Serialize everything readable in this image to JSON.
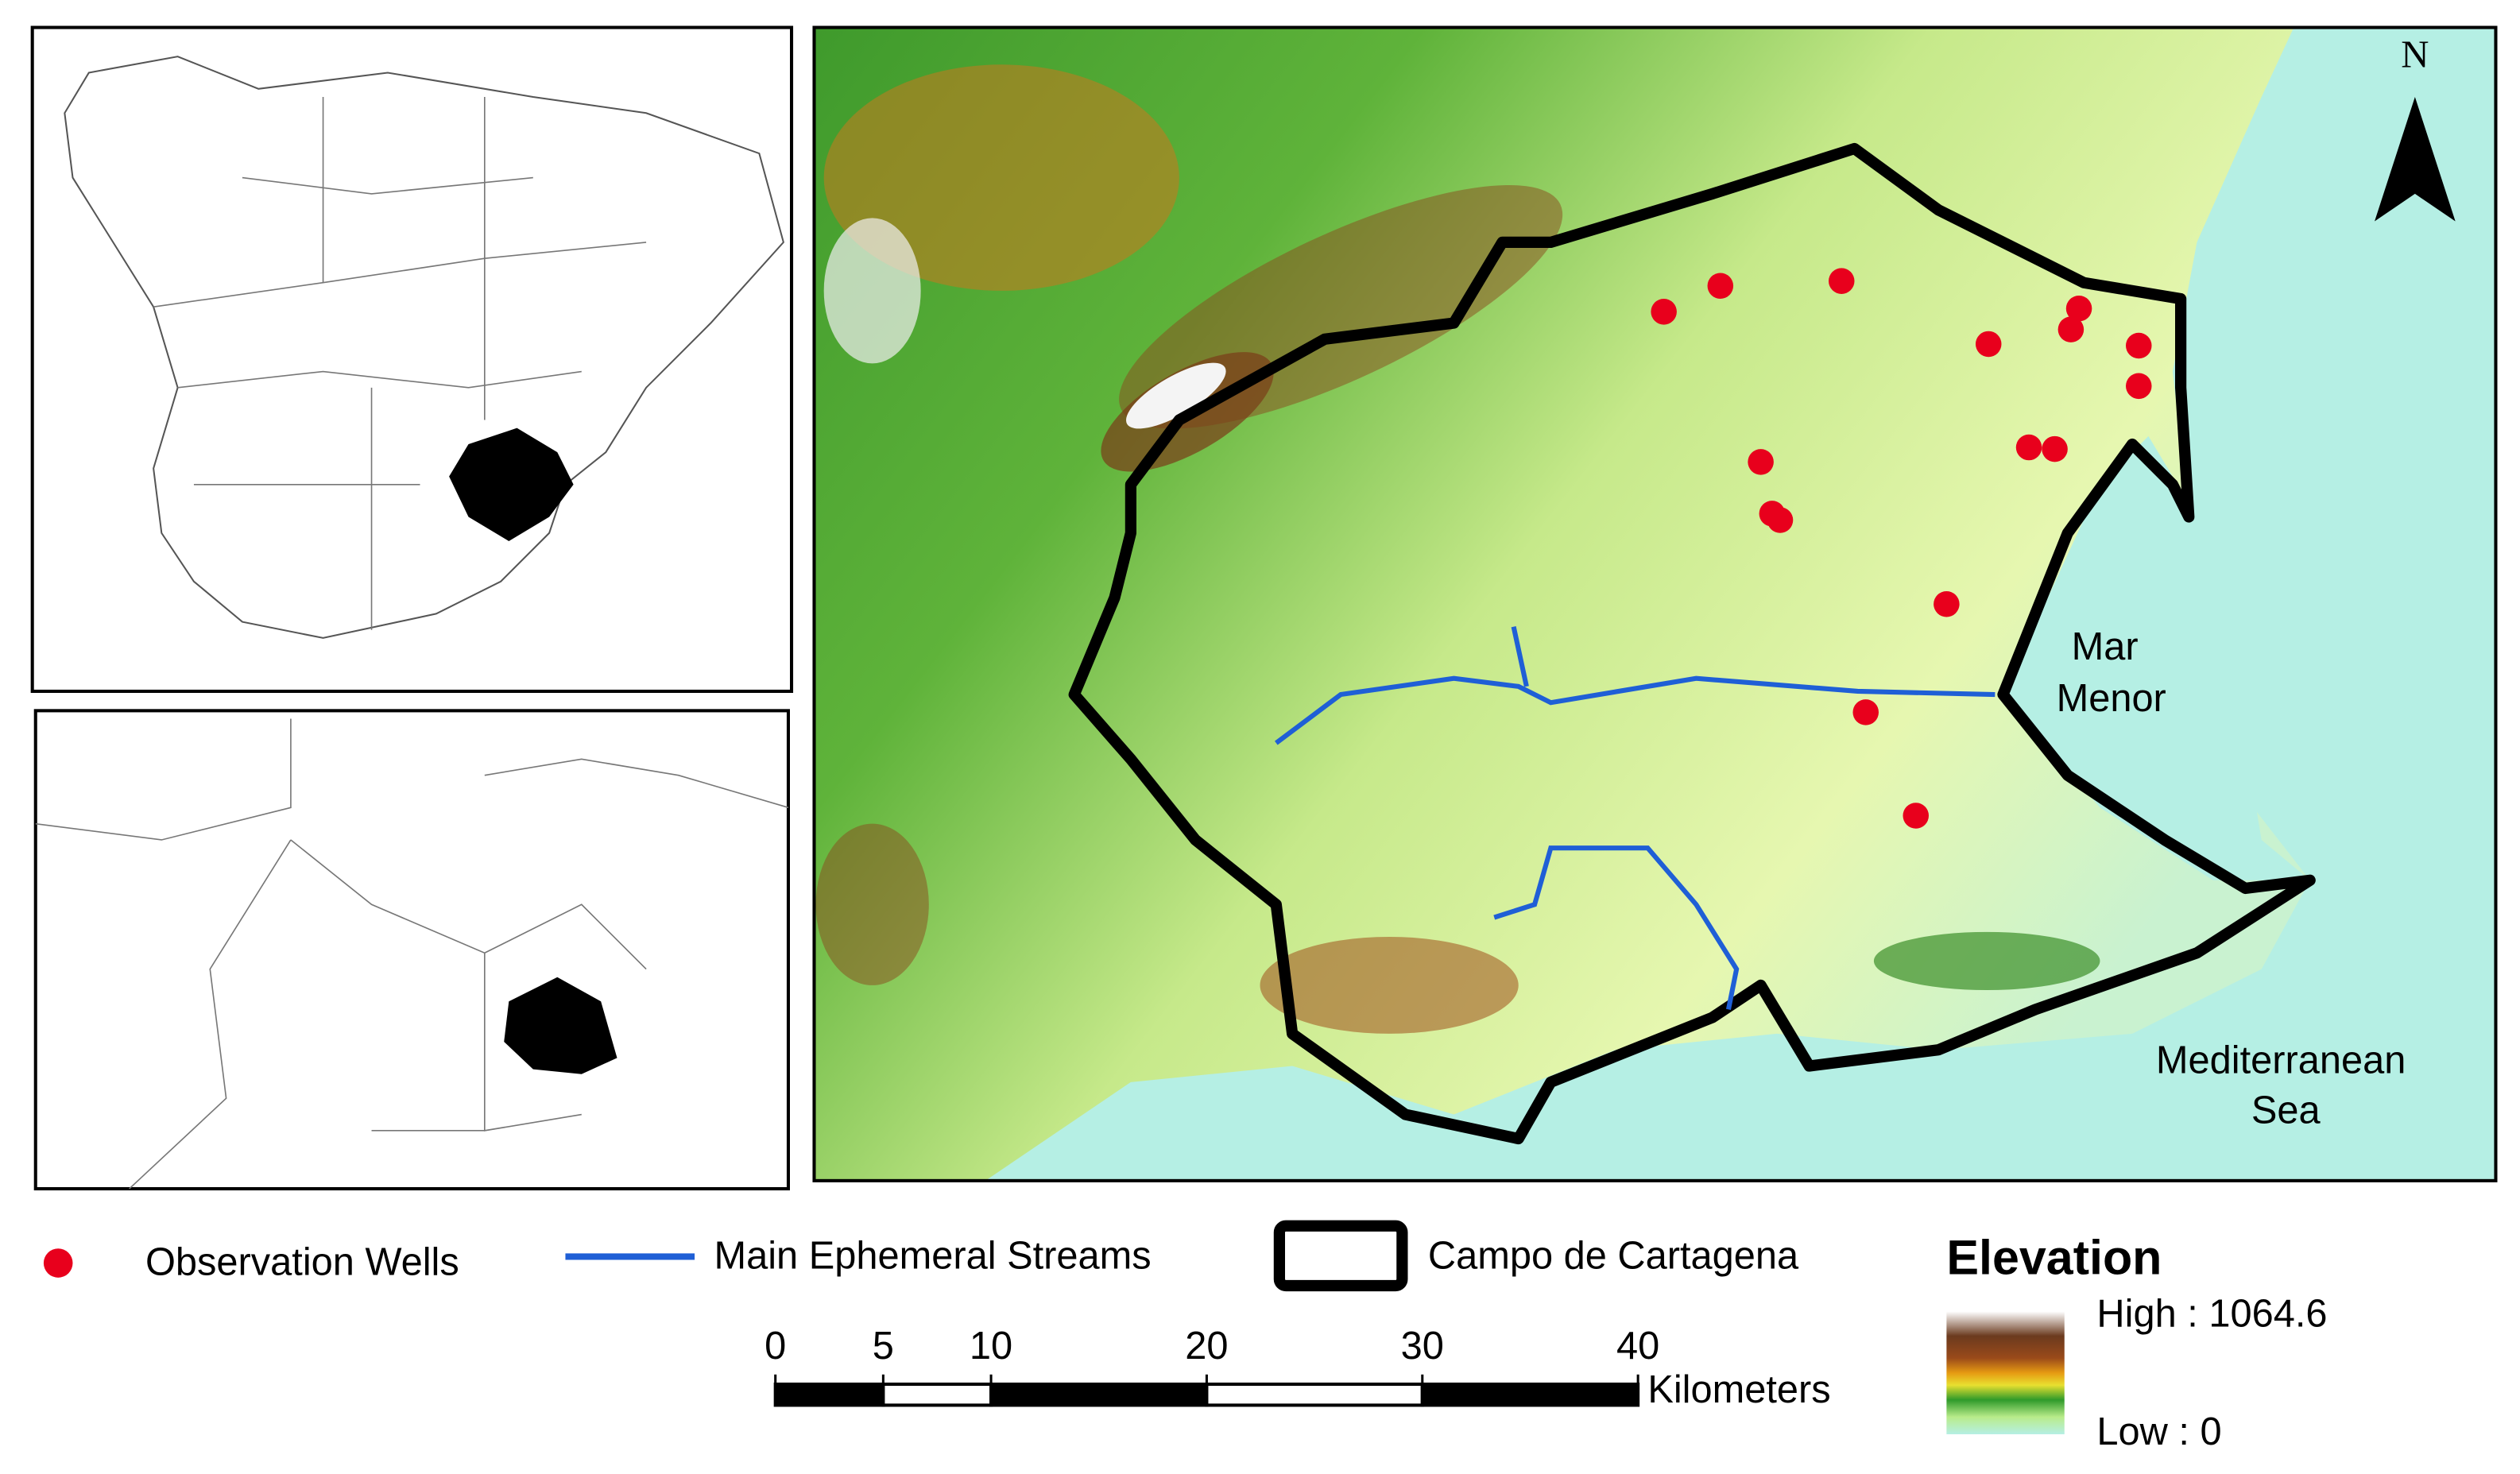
{
  "map": {
    "north": "N",
    "labels": {
      "mar_menor": [
        "Mar",
        "Menor"
      ],
      "mediterranean_sea": [
        "Mediterranean",
        "Sea"
      ]
    }
  },
  "legend": {
    "wells": "Observation Wells",
    "streams": "Main Ephemeral Streams",
    "boundary": "Campo de Cartagena",
    "elevation": {
      "title": "Elevation",
      "high": "High : 1064.6",
      "low": "Low : 0"
    }
  },
  "scale_bar": {
    "ticks": [
      0,
      5,
      10,
      20,
      30,
      40
    ],
    "unit": "Kilometers"
  }
}
